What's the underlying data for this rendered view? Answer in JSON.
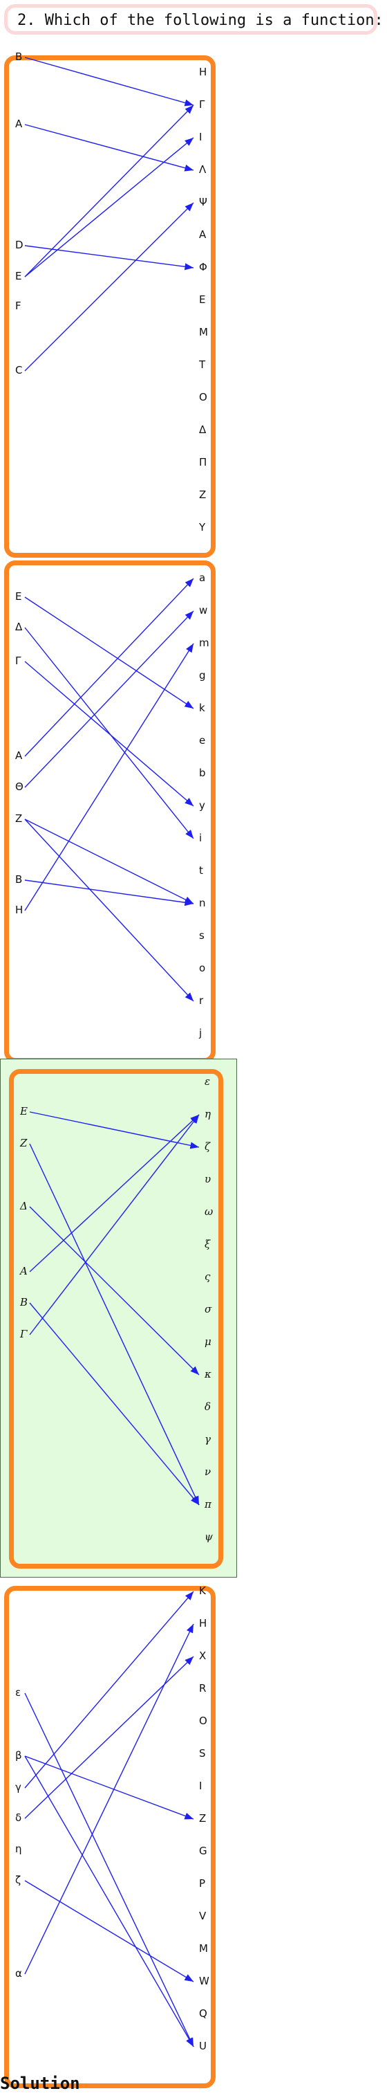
{
  "question": "2. Which of the following is a function:",
  "solution_label": "Solution",
  "colors": {
    "panel_border": "#fb8521",
    "arrow": "#1f1ff0",
    "selected_bg": "#e1fbdc",
    "question_border": "#fcd8d8"
  },
  "panels": [
    {
      "selected": false,
      "italic": false,
      "left": [
        "B",
        "A",
        "D",
        "E",
        "F",
        "C"
      ],
      "right": [
        "H",
        "Γ",
        "I",
        "Λ",
        "Ψ",
        "A",
        "Φ",
        "E",
        "M",
        "T",
        "O",
        "Δ",
        "Π",
        "Z",
        "Y"
      ],
      "mappings": [
        [
          "B",
          "Γ"
        ],
        [
          "A",
          "Λ"
        ],
        [
          "D",
          "Φ"
        ],
        [
          "E",
          "Γ"
        ],
        [
          "E",
          "I"
        ],
        [
          "C",
          "Ψ"
        ]
      ]
    },
    {
      "selected": false,
      "italic": false,
      "left": [
        "E",
        "Δ",
        "Γ",
        "A",
        "Θ",
        "Z",
        "B",
        "H"
      ],
      "right": [
        "a",
        "w",
        "m",
        "g",
        "k",
        "e",
        "b",
        "y",
        "i",
        "t",
        "n",
        "s",
        "o",
        "r",
        "j"
      ],
      "mappings": [
        [
          "E",
          "k"
        ],
        [
          "Δ",
          "i"
        ],
        [
          "Γ",
          "y"
        ],
        [
          "A",
          "a"
        ],
        [
          "Θ",
          "w"
        ],
        [
          "Z",
          "n"
        ],
        [
          "Z",
          "r"
        ],
        [
          "B",
          "n"
        ],
        [
          "H",
          "m"
        ]
      ]
    },
    {
      "selected": true,
      "italic": true,
      "left": [
        "E",
        "Z",
        "Δ",
        "A",
        "B",
        "Γ"
      ],
      "right": [
        "ε",
        "η",
        "ζ",
        "υ",
        "ω",
        "ξ",
        "ς",
        "σ",
        "μ",
        "κ",
        "δ",
        "γ",
        "ν",
        "π",
        "ψ"
      ],
      "mappings": [
        [
          "E",
          "ζ"
        ],
        [
          "Z",
          "π"
        ],
        [
          "Δ",
          "κ"
        ],
        [
          "A",
          "η"
        ],
        [
          "B",
          "π"
        ],
        [
          "Γ",
          "η"
        ]
      ]
    },
    {
      "selected": false,
      "italic": false,
      "left": [
        "ε",
        "β",
        "γ",
        "δ",
        "η",
        "ζ",
        "α"
      ],
      "right": [
        "K",
        "H",
        "X",
        "R",
        "O",
        "S",
        "I",
        "Z",
        "G",
        "P",
        "V",
        "M",
        "W",
        "Q",
        "U"
      ],
      "mappings": [
        [
          "ε",
          "U"
        ],
        [
          "β",
          "Z"
        ],
        [
          "β",
          "U"
        ],
        [
          "γ",
          "K"
        ],
        [
          "δ",
          "X"
        ],
        [
          "ζ",
          "W"
        ],
        [
          "α",
          "H"
        ]
      ]
    }
  ]
}
